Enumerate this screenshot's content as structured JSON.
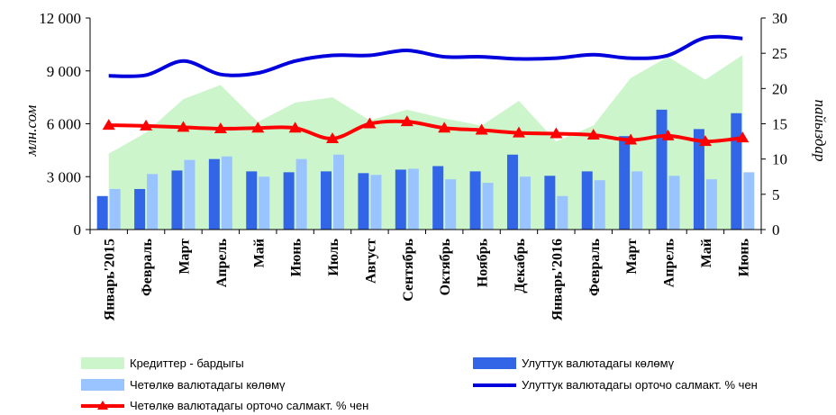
{
  "chart_data": {
    "type": "bar",
    "title": "",
    "categories": [
      "Январь'2015",
      "Февраль",
      "Март",
      "Апрель",
      "Май",
      "Июнь",
      "Июль",
      "Август",
      "Сентябрь",
      "Октябрь",
      "Ноябрь",
      "Декабрь",
      "Январь'2016",
      "Февраль",
      "Март",
      "Апрель",
      "Май",
      "Июнь"
    ],
    "ylabel_left": "млн.сом",
    "ylabel_right": "пайыздар",
    "y_left_lim": [
      0,
      12000
    ],
    "y_left_ticks": [
      "0",
      "3 000",
      "6 000",
      "9 000",
      "12 000"
    ],
    "y_right_lim": [
      0,
      30
    ],
    "y_right_ticks": [
      "0",
      "5",
      "10",
      "15",
      "20",
      "25",
      "30"
    ],
    "grid": false,
    "legend_position": "bottom",
    "series": [
      {
        "name": "Кредиттер - бардыгы",
        "kind": "area",
        "axis": "left",
        "color": "#ccf5cc",
        "values": [
          4300,
          5500,
          7400,
          8200,
          6100,
          7200,
          7500,
          6200,
          6800,
          6300,
          5900,
          7300,
          5000,
          5900,
          8600,
          9800,
          8500,
          9900
        ]
      },
      {
        "name": "Улуттук валютадагы көлөмү",
        "kind": "bar",
        "axis": "left",
        "color": "#3366e6",
        "values": [
          1900,
          2300,
          3350,
          4000,
          3300,
          3250,
          3300,
          3200,
          3400,
          3600,
          3300,
          4250,
          3050,
          3300,
          5300,
          6800,
          5700,
          6600
        ]
      },
      {
        "name": "Четөлкө валютадагы көлөмү",
        "kind": "bar",
        "axis": "left",
        "color": "#99c4ff",
        "values": [
          2300,
          3150,
          3950,
          4150,
          3000,
          4000,
          4250,
          3100,
          3450,
          2850,
          2650,
          3000,
          1900,
          2800,
          3300,
          3050,
          2850,
          3250
        ]
      },
      {
        "name": "Улуттук валютадагы орточо салмакт. % чен",
        "kind": "line",
        "axis": "right",
        "color": "#0000dd",
        "values": [
          21.8,
          21.9,
          23.9,
          22.0,
          22.2,
          23.9,
          24.7,
          24.7,
          25.4,
          24.5,
          24.5,
          24.2,
          24.3,
          24.8,
          24.3,
          24.7,
          27.2,
          27.1
        ]
      },
      {
        "name": "Четөлкө валютадагы орточо салмакт. % чен",
        "kind": "line-marker",
        "axis": "right",
        "color": "#ff0000",
        "values": [
          14.8,
          14.7,
          14.5,
          14.3,
          14.4,
          14.4,
          12.9,
          15.0,
          15.3,
          14.4,
          14.1,
          13.7,
          13.6,
          13.4,
          12.7,
          13.3,
          12.5,
          13.0
        ]
      }
    ]
  },
  "legend": {
    "total_credits": "Кредиттер - бардыгы",
    "national_volume": "Улуттук валютадагы көлөмү",
    "foreign_volume": "Четөлкө валютадагы көлөмү",
    "national_rate": "Улуттук валютадагы орточо салмакт. % чен",
    "foreign_rate": "Четөлкө валютадагы орточо салмакт. % чен"
  },
  "colors": {
    "area": "#ccf5cc",
    "bar_national": "#3366e6",
    "bar_foreign": "#99c4ff",
    "line_national": "#0000dd",
    "line_foreign": "#ff0000"
  }
}
